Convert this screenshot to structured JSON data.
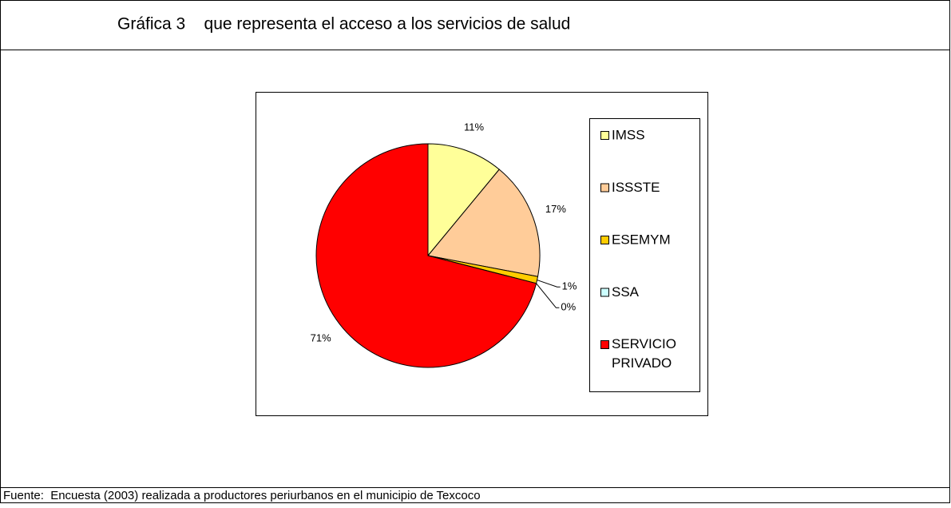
{
  "chart_data": {
    "type": "pie",
    "title": "Gráfica 3    que representa el acceso a los servicios de salud",
    "source": "Fuente:  Encuesta (2003) realizada a productores periurbanos en el municipio de Texcoco",
    "categories": [
      "IMSS",
      "ISSSTE",
      "ESEMYM",
      "SSA",
      "SERVICIO PRIVADO"
    ],
    "values": [
      11,
      17,
      1,
      0,
      71
    ],
    "value_labels": [
      "11%",
      "17%",
      "1%",
      "0%",
      "71%"
    ],
    "colors": [
      "#ffff99",
      "#ffcc99",
      "#ffcc00",
      "#ccffff",
      "#ff0000"
    ],
    "legend": "right"
  }
}
